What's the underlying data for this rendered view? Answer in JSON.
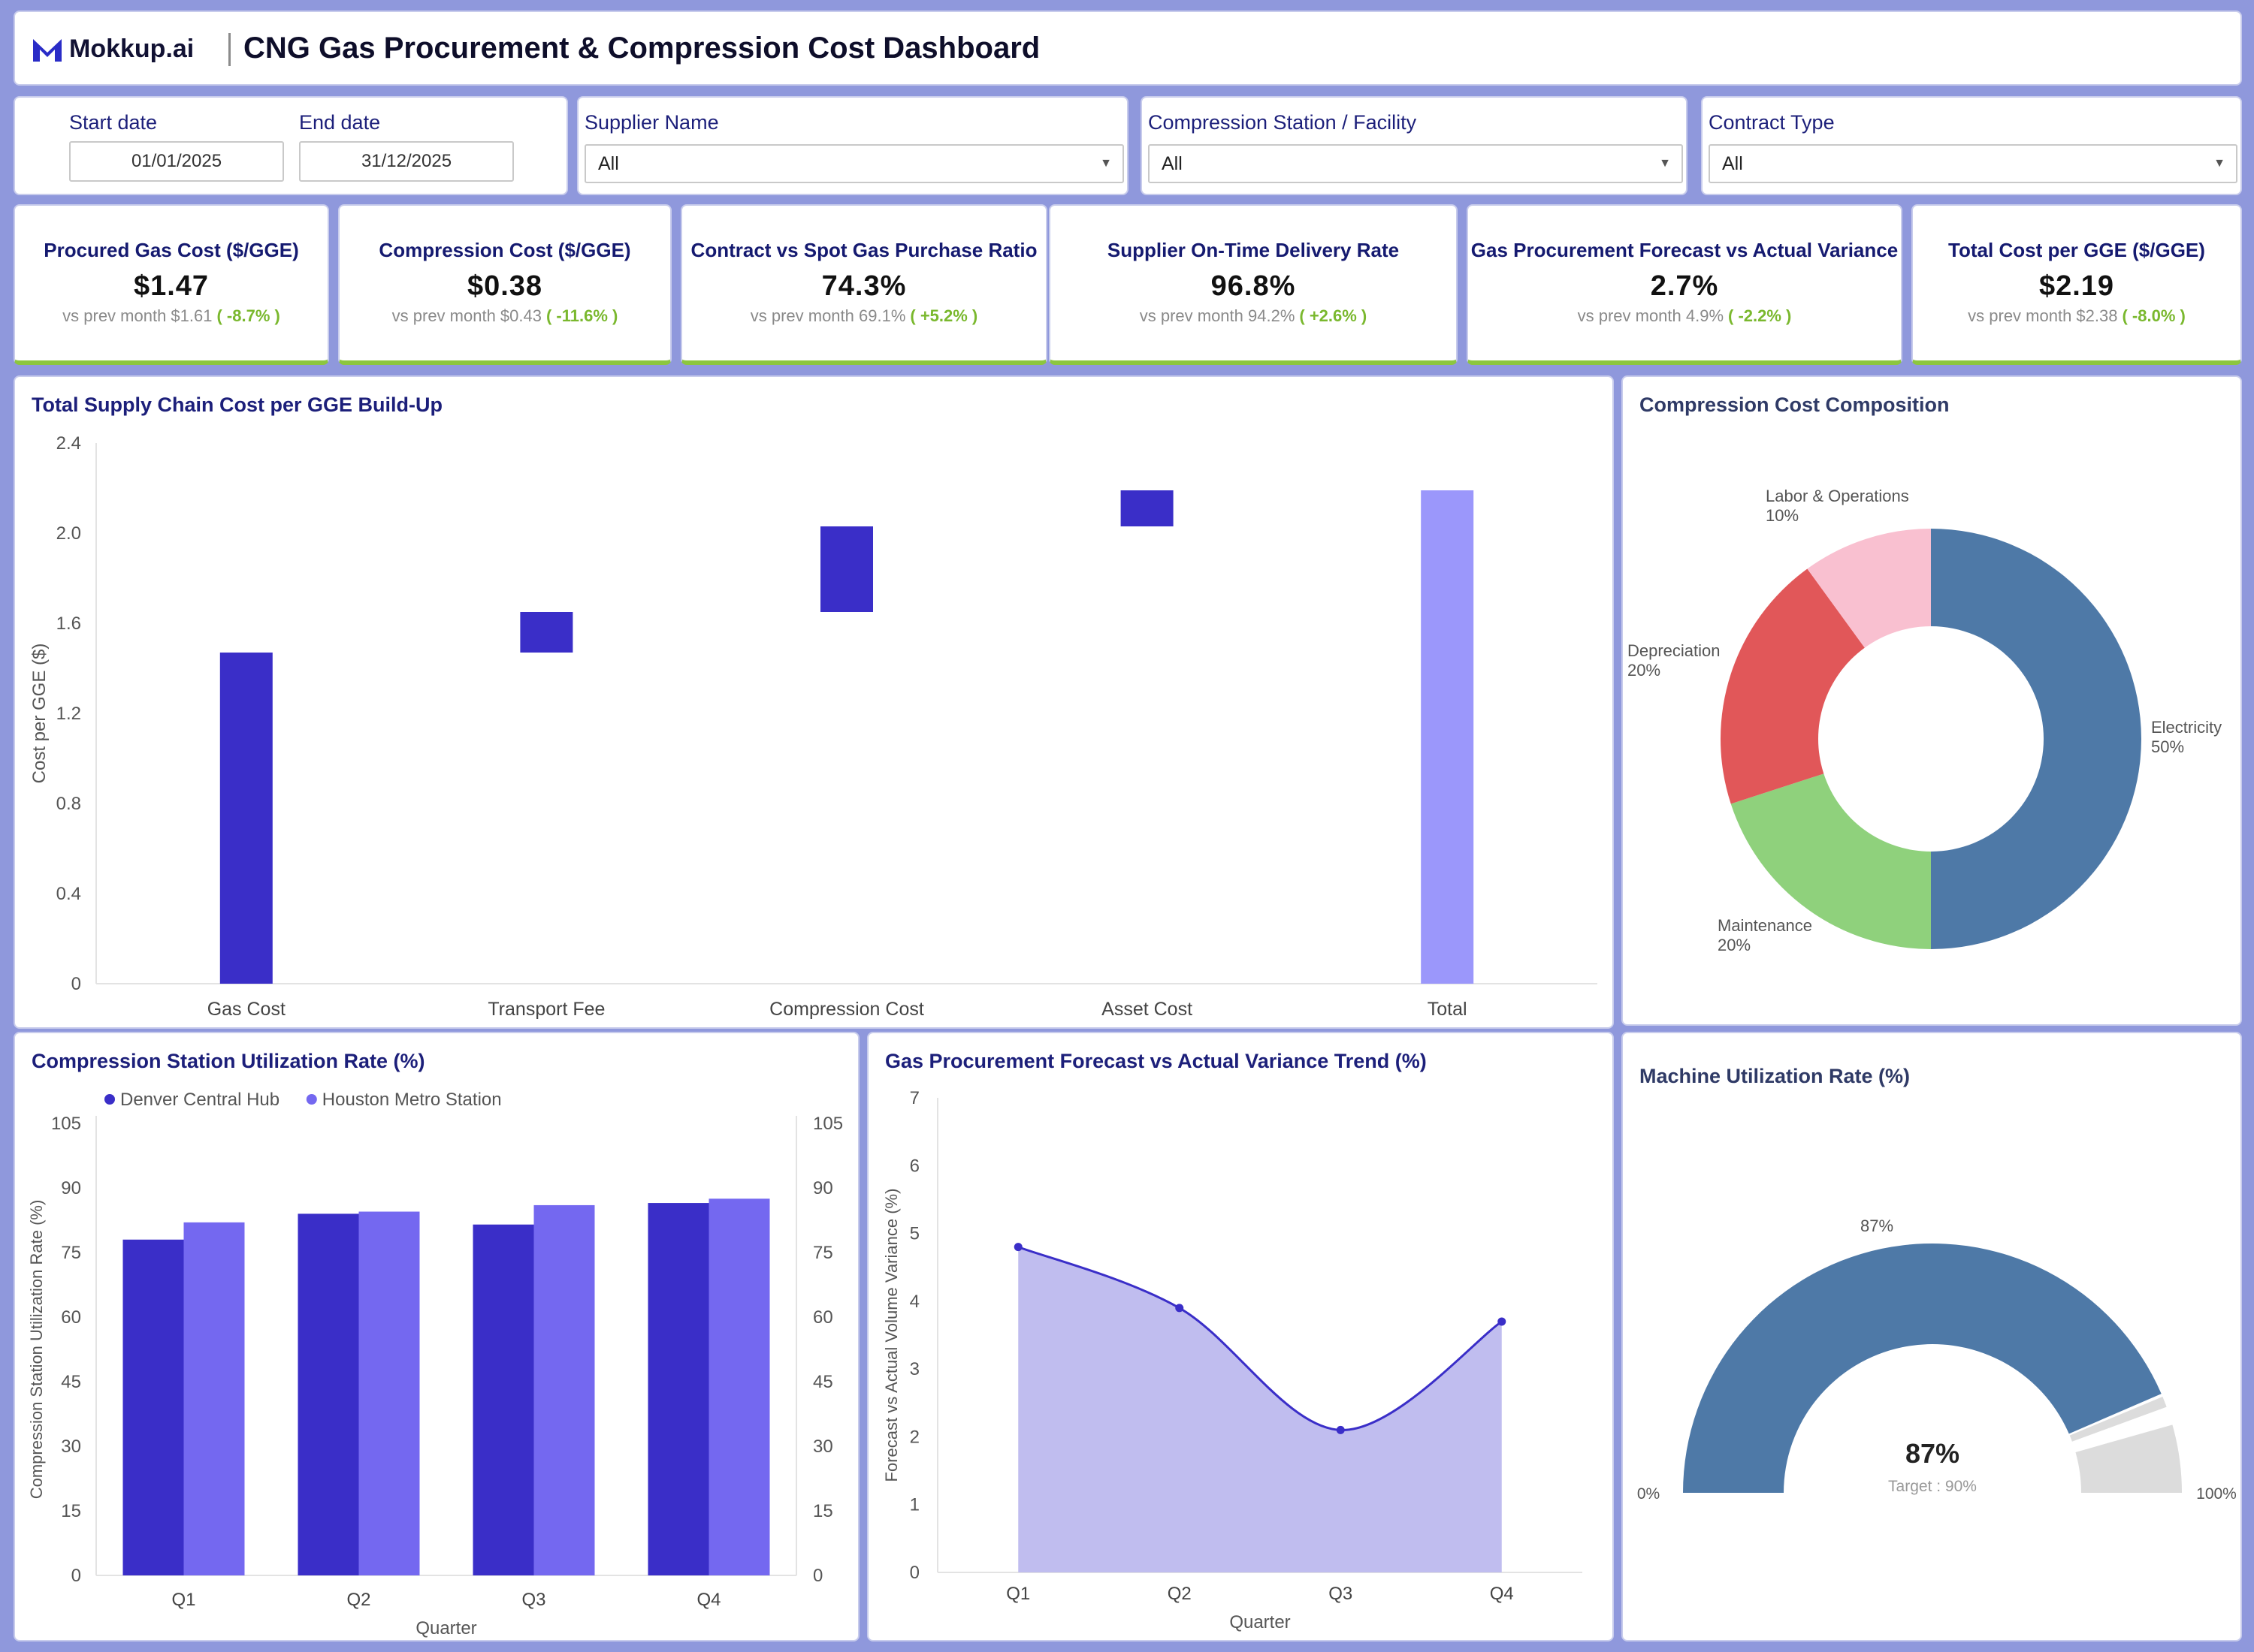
{
  "header": {
    "logo_text": "Mokkup.ai",
    "title": "CNG Gas Procurement & Compression Cost Dashboard"
  },
  "filters": {
    "start_label": "Start date",
    "start_value": "01/01/2025",
    "end_label": "End date",
    "end_value": "31/12/2025",
    "supplier_label": "Supplier Name",
    "supplier_value": "All",
    "station_label": "Compression Station / Facility",
    "station_value": "All",
    "contract_label": "Contract Type",
    "contract_value": "All"
  },
  "kpis": [
    {
      "title": "Procured Gas Cost ($/GGE)",
      "value": "$1.47",
      "prev": "vs prev month $1.61",
      "change": "( -8.7% )"
    },
    {
      "title": "Compression Cost ($/GGE)",
      "value": "$0.38",
      "prev": "vs prev month $0.43",
      "change": "( -11.6% )"
    },
    {
      "title": "Contract vs Spot Gas Purchase Ratio",
      "value": "74.3%",
      "prev": "vs prev month 69.1%",
      "change": "( +5.2% )"
    },
    {
      "title": "Supplier On-Time Delivery Rate",
      "value": "96.8%",
      "prev": "vs prev month 94.2%",
      "change": "( +2.6% )"
    },
    {
      "title": "Gas Procurement Forecast vs Actual Variance",
      "value": "2.7%",
      "prev": "vs prev month 4.9%",
      "change": "( -2.2% )"
    },
    {
      "title": "Total Cost per GGE ($/GGE)",
      "value": "$2.19",
      "prev": "vs prev month $2.38",
      "change": "( -8.0% )"
    }
  ],
  "colors": {
    "primary": "#3a2ec8",
    "secondary": "#7468f0",
    "total": "#9b97fb",
    "area_fill": "#c0bdef",
    "gauge": "#4e79a7",
    "gauge_rest": "#dcdcdc",
    "kpi_accent": "#8cc63f",
    "positive": "#7ab82e"
  },
  "chart_data": [
    {
      "id": "waterfall",
      "type": "bar",
      "title": "Total Supply Chain Cost per GGE Build-Up",
      "ylabel": "Cost per GGE ($)",
      "xlabel": "",
      "ylim": [
        0,
        2.4
      ],
      "yticks": [
        "0",
        "0.4",
        "0.8",
        "1.2",
        "1.6",
        "2.0",
        "2.4"
      ],
      "categories": [
        "Gas Cost",
        "Transport Fee",
        "Compression Cost",
        "Asset Cost",
        "Total"
      ],
      "values": [
        1.47,
        0.18,
        0.38,
        0.16,
        2.19
      ],
      "grid": false
    },
    {
      "id": "donut",
      "type": "pie",
      "title": "Compression Cost Composition",
      "slices": [
        {
          "label": "Electricity",
          "pct_label": "50%",
          "value": 50,
          "color": "#4e79a7"
        },
        {
          "label": "Maintenance",
          "pct_label": "20%",
          "value": 20,
          "color": "#8fd17c"
        },
        {
          "label": "Depreciation",
          "pct_label": "20%",
          "value": 20,
          "color": "#e15759"
        },
        {
          "label": "Labor & Operations",
          "pct_label": "10%",
          "value": 10,
          "color": "#f9c0d0"
        }
      ]
    },
    {
      "id": "utilization",
      "type": "bar",
      "title": "Compression Station Utilization Rate (%)",
      "xlabel": "Quarter",
      "ylabel": "Compression Station Utilization Rate (%)",
      "ylim": [
        0,
        105
      ],
      "yticks": [
        "0",
        "15",
        "30",
        "45",
        "60",
        "75",
        "90",
        "105"
      ],
      "categories": [
        "Q1",
        "Q2",
        "Q3",
        "Q4"
      ],
      "legend": "top-left",
      "series": [
        {
          "name": "Denver Central Hub",
          "values": [
            78,
            84,
            81.5,
            86.5
          ],
          "color": "#3a2ec8"
        },
        {
          "name": "Houston Metro Station",
          "values": [
            82,
            84.5,
            86,
            87.5
          ],
          "color": "#7468f0"
        }
      ]
    },
    {
      "id": "variance",
      "type": "area",
      "title": "Gas Procurement Forecast vs Actual Variance Trend (%)",
      "xlabel": "Quarter",
      "ylabel": "Forecast vs Actual Volume Variance (%)",
      "ylim": [
        0,
        7
      ],
      "yticks": [
        "0",
        "1",
        "2",
        "3",
        "4",
        "5",
        "6",
        "7"
      ],
      "categories": [
        "Q1",
        "Q2",
        "Q3",
        "Q4"
      ],
      "values": [
        4.8,
        3.9,
        2.1,
        3.7
      ]
    },
    {
      "id": "gauge",
      "type": "gauge",
      "title": "Machine Utilization Rate (%)",
      "value": 87,
      "value_label": "87%",
      "top_label": "87%",
      "target": 90,
      "target_label": "Target : 90%",
      "min_label": "0%",
      "max_label": "100%"
    }
  ]
}
